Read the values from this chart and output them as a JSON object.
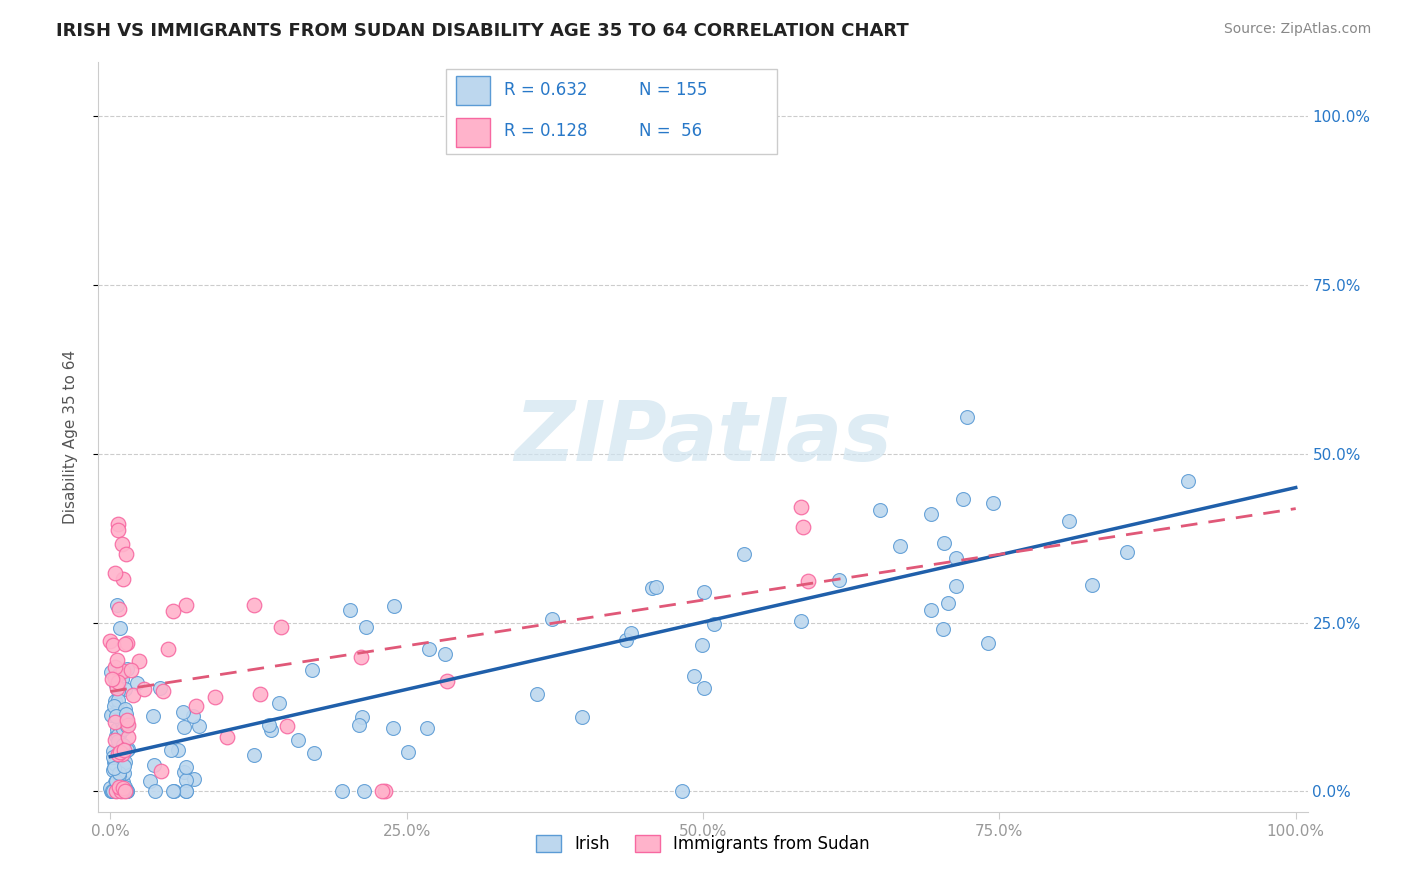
{
  "title": "IRISH VS IMMIGRANTS FROM SUDAN DISABILITY AGE 35 TO 64 CORRELATION CHART",
  "source": "Source: ZipAtlas.com",
  "ylabel": "Disability Age 35 to 64",
  "x_tick_vals": [
    0,
    25,
    50,
    75,
    100
  ],
  "y_tick_vals": [
    0,
    25,
    50,
    75,
    100
  ],
  "xlim": [
    -1,
    101
  ],
  "ylim": [
    -3,
    108
  ],
  "irish_R": 0.632,
  "irish_N": 155,
  "sudan_R": 0.128,
  "sudan_N": 56,
  "irish_edge_color": "#5b9bd5",
  "irish_face_color": "#bdd7ee",
  "sudan_edge_color": "#f768a1",
  "sudan_face_color": "#ffb3cb",
  "regression_irish_color": "#1f5faa",
  "regression_sudan_color": "#e05878",
  "watermark": "ZIPatlas",
  "watermark_color": "#d0e4f0",
  "grid_color": "#cccccc",
  "tick_color": "#999999",
  "right_axis_color": "#2878c8",
  "title_color": "#222222",
  "source_color": "#888888",
  "ylabel_color": "#555555"
}
